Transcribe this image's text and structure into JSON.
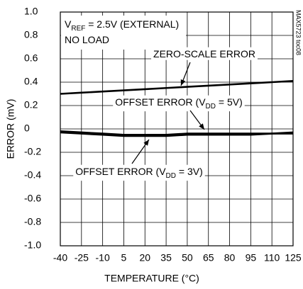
{
  "chart_data": {
    "type": "line",
    "x_label": "TEMPERATURE (°C)",
    "y_label": "ERROR (mV)",
    "annotations": [
      [
        "V",
        "REF",
        " = 2.5V (EXTERNAL)"
      ],
      [
        "NO LOAD"
      ]
    ],
    "figure_id": "MAX5723 toc08",
    "x": [
      -40,
      -25,
      -10,
      5,
      20,
      35,
      50,
      65,
      80,
      95,
      110,
      125
    ],
    "series": [
      {
        "label": [
          "ZERO-SCALE ERROR"
        ],
        "color": "#000000",
        "values": [
          0.3,
          0.31,
          0.32,
          0.33,
          0.34,
          0.35,
          0.36,
          0.37,
          0.38,
          0.39,
          0.4,
          0.41
        ]
      },
      {
        "label": [
          "OFFSET ERROR (V",
          "DD",
          " = 5V)"
        ],
        "color": "#000000",
        "values": [
          -0.02,
          -0.03,
          -0.04,
          -0.05,
          -0.05,
          -0.05,
          -0.04,
          -0.04,
          -0.04,
          -0.04,
          -0.04,
          -0.04
        ]
      },
      {
        "label": [
          "OFFSET ERROR (V",
          "DD",
          " = 3V)"
        ],
        "color": "#000000",
        "values": [
          -0.03,
          -0.04,
          -0.05,
          -0.06,
          -0.06,
          -0.06,
          -0.05,
          -0.05,
          -0.05,
          -0.05,
          -0.04,
          -0.03
        ]
      }
    ],
    "xlim": [
      -40,
      125
    ],
    "xticks": [
      -40,
      -25,
      -10,
      5,
      20,
      35,
      50,
      65,
      80,
      95,
      110,
      125
    ],
    "ylim": [
      -1,
      1
    ],
    "yticks": [
      {
        "value": -1,
        "label": "-1.0"
      },
      -0.8,
      -0.6,
      -0.4,
      -0.2,
      0,
      0.2,
      0.4,
      0.6,
      0.8,
      {
        "value": 1,
        "label": "1.0"
      }
    ],
    "grid": true
  }
}
